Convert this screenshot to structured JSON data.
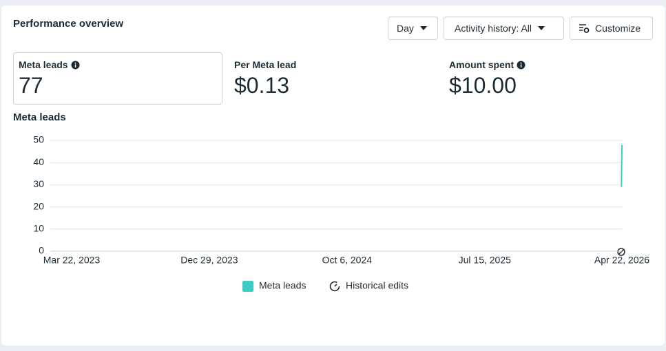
{
  "title": "Performance overview",
  "controls": [
    "Day",
    "Activity history: All",
    "Customize"
  ],
  "metrics": [
    {
      "label": "Meta leads",
      "value": 77
    },
    {
      "label": "Per Meta lead",
      "value": "$0.13"
    },
    {
      "label": "Amount spent",
      "value": "$10.00"
    }
  ],
  "chart_data": {
    "type": "line",
    "title": "Meta leads",
    "x": [
      "Apr 21, 2026",
      "Apr 22, 2026"
    ],
    "series": [
      {
        "name": "Meta leads",
        "color": "#3dcbc4",
        "values": [
          29,
          48
        ]
      }
    ],
    "xlim": [
      "Mar 22, 2023",
      "Apr 22, 2026"
    ],
    "xticks": [
      "Mar 22, 2023",
      "Dec 29, 2023",
      "Oct 6, 2024",
      "Jul 15, 2025",
      "Apr 22, 2026"
    ],
    "ylim": [
      0,
      50
    ],
    "yticks": [
      0,
      10,
      20,
      30,
      40,
      50
    ],
    "grid": true,
    "legend_extra": "Historical edits"
  }
}
